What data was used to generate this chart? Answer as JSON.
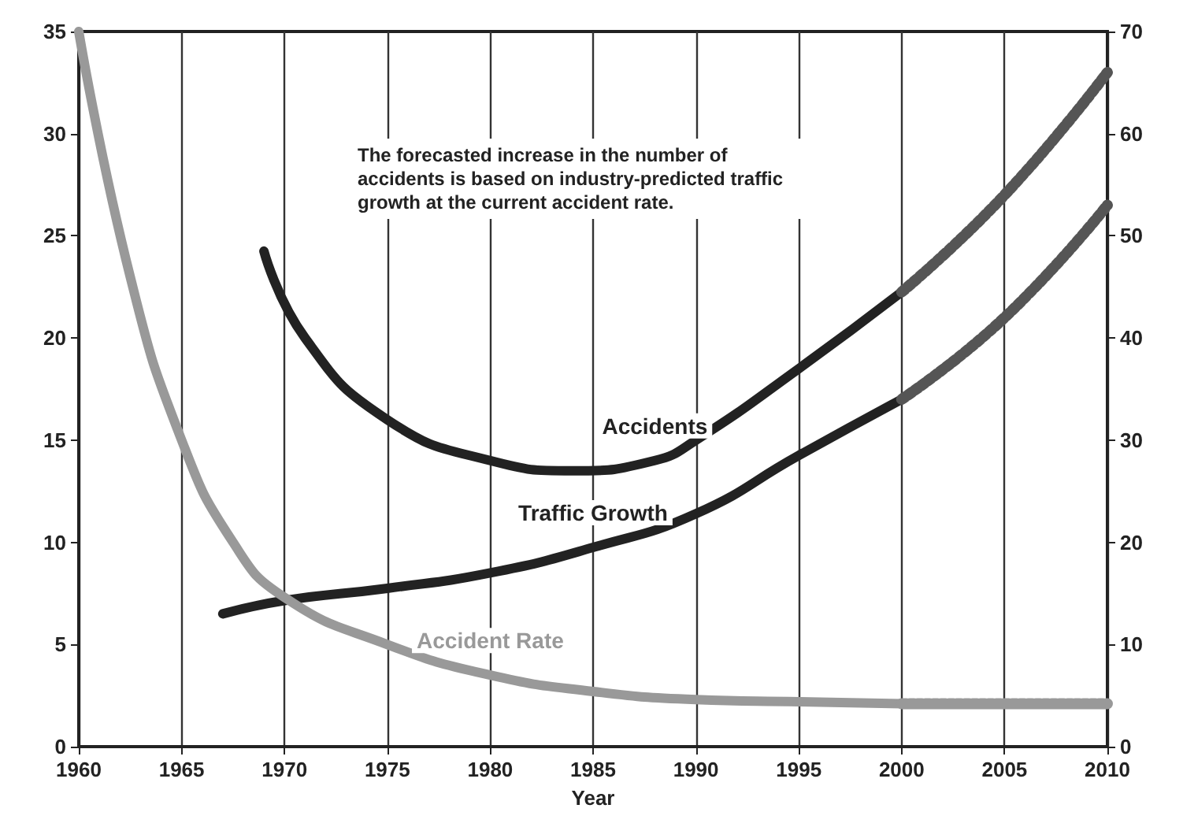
{
  "chart_data": {
    "type": "line",
    "xlabel": "Year",
    "xlim": [
      1960,
      2010
    ],
    "xticks": [
      1960,
      1965,
      1970,
      1975,
      1980,
      1985,
      1990,
      1995,
      2000,
      2005,
      2010
    ],
    "ylim": [
      0,
      35
    ],
    "yticks": [
      0,
      5,
      10,
      15,
      20,
      25,
      30,
      35
    ],
    "y2lim": [
      0,
      70
    ],
    "y2ticks": [
      0,
      10,
      20,
      30,
      40,
      50,
      60,
      70
    ],
    "grid": "x",
    "legend": false,
    "marker": "none",
    "annotations": [
      "The forecasted increase in the number of accidents is based on industry-predicted traffic growth at the current accident rate."
    ],
    "series": [
      {
        "name": "Accidents",
        "color": "#222222",
        "axis": "y2",
        "line_style": "solid",
        "x": [
          1969,
          1971,
          1975,
          1980,
          1984,
          1988,
          1990,
          1995,
          2000
        ],
        "values": [
          48.5,
          40,
          32,
          28,
          27,
          28,
          30,
          37,
          44.5
        ]
      },
      {
        "color": "#555555",
        "axis": "y2",
        "line_style": "dashed",
        "x": [
          2000,
          2005,
          2010
        ],
        "values": [
          44.5,
          54,
          66
        ]
      },
      {
        "name": "Traffic Growth",
        "color": "#222222",
        "axis": "y2",
        "line_style": "solid",
        "x": [
          1967,
          1970,
          1975,
          1980,
          1985,
          1990,
          1995,
          2000
        ],
        "values": [
          13,
          14.3,
          15.5,
          17,
          19.5,
          22.8,
          28.5,
          34
        ]
      },
      {
        "color": "#555555",
        "axis": "y2",
        "line_style": "dashed",
        "x": [
          2000,
          2005,
          2010
        ],
        "values": [
          34,
          42,
          53
        ]
      },
      {
        "name": "Accident Rate",
        "color": "#999999",
        "axis": "y",
        "line_style": "solid",
        "x": [
          1960,
          1962.5,
          1965,
          1967.5,
          1970,
          1975,
          1980,
          1985,
          1990,
          1995,
          2000
        ],
        "values": [
          35,
          23,
          15,
          10,
          7.3,
          5,
          3.5,
          2.7,
          2.3,
          2.2,
          2.1
        ]
      },
      {
        "color": "#999999",
        "axis": "y",
        "line_style": "dashed",
        "x": [
          2000,
          2005,
          2010
        ],
        "values": [
          2.1,
          2.1,
          2.1
        ]
      }
    ]
  }
}
